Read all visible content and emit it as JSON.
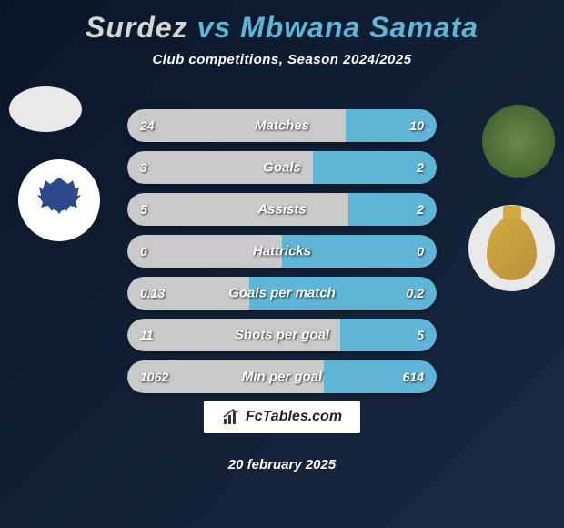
{
  "title": {
    "player1": "Surdez",
    "vs": "vs",
    "player2": "Mbwana Samata"
  },
  "subtitle": "Club competitions, Season 2024/2025",
  "colors": {
    "player1_fill": "#c9c9c9",
    "player2_fill": "#5fb5d6",
    "bar_track": "#2a3548",
    "text": "#ffffff",
    "background_start": "#0a1628",
    "background_end": "#1a2942"
  },
  "stats": [
    {
      "label": "Matches",
      "left_value": "24",
      "right_value": "10",
      "left_pct": 70.5,
      "right_pct": 29.5
    },
    {
      "label": "Goals",
      "left_value": "3",
      "right_value": "2",
      "left_pct": 60,
      "right_pct": 40
    },
    {
      "label": "Assists",
      "left_value": "5",
      "right_value": "2",
      "left_pct": 71.4,
      "right_pct": 28.6
    },
    {
      "label": "Hattricks",
      "left_value": "0",
      "right_value": "0",
      "left_pct": 50,
      "right_pct": 50
    },
    {
      "label": "Goals per match",
      "left_value": "0.13",
      "right_value": "0.2",
      "left_pct": 39.4,
      "right_pct": 60.6
    },
    {
      "label": "Shots per goal",
      "left_value": "11",
      "right_value": "5",
      "left_pct": 68.8,
      "right_pct": 31.2
    },
    {
      "label": "Min per goal",
      "left_value": "1062",
      "right_value": "614",
      "left_pct": 63.4,
      "right_pct": 36.6
    }
  ],
  "footer": {
    "brand": "FcTables.com",
    "date": "20 february 2025"
  }
}
